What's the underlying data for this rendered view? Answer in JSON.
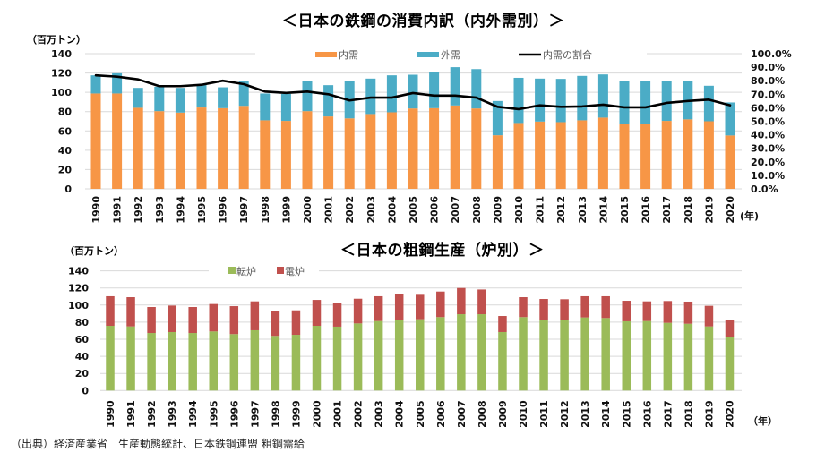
{
  "source_note": "（出典）経済産業省　生産動態統計、日本鉄鋼連盟 粗鋼需給",
  "colors": {
    "domestic": "#F79646",
    "export": "#4BACC6",
    "ratio_line": "#000000",
    "bof": "#9BBB59",
    "eaf": "#C0504D",
    "grid": "#D9D9D9"
  },
  "chart_data": [
    {
      "type": "bar",
      "stacked": true,
      "title": "＜日本の鉄鋼の消費内訳（内外需別）＞",
      "ylabel": "（百万トン）",
      "xlabel": "(年)",
      "ylim": [
        0,
        140
      ],
      "yticks": [
        "0",
        "20",
        "40",
        "60",
        "80",
        "100",
        "120",
        "140"
      ],
      "y2lim": [
        0,
        100
      ],
      "y2ticks": [
        "0.0%",
        "10.0%",
        "20.0%",
        "30.0%",
        "40.0%",
        "50.0%",
        "60.0%",
        "70.0%",
        "80.0%",
        "90.0%",
        "100.0%"
      ],
      "grid": true,
      "legend_position": "top-center",
      "categories": [
        "1990",
        "1991",
        "1992",
        "1993",
        "1994",
        "1995",
        "1996",
        "1997",
        "1998",
        "1999",
        "2000",
        "2001",
        "2002",
        "2003",
        "2004",
        "2005",
        "2006",
        "2007",
        "2008",
        "2009",
        "2010",
        "2011",
        "2012",
        "2013",
        "2014",
        "2015",
        "2016",
        "2017",
        "2018",
        "2019",
        "2020"
      ],
      "series": [
        {
          "name": "内需",
          "type": "bar",
          "axis": "left",
          "values": [
            98.8,
            98.8,
            84.0,
            80.5,
            79.0,
            84.3,
            83.6,
            86.0,
            71.0,
            70.4,
            80.5,
            75.0,
            73.0,
            77.5,
            79.3,
            83.3,
            83.6,
            86.4,
            83.3,
            55.5,
            68.2,
            69.7,
            69.1,
            71.0,
            73.8,
            67.6,
            67.3,
            70.4,
            72.0,
            70.0,
            55.3
          ]
        },
        {
          "name": "外需",
          "type": "bar",
          "axis": "left",
          "values": [
            18.8,
            20.9,
            20.6,
            25.3,
            25.6,
            23.7,
            21.6,
            25.7,
            27.8,
            28.0,
            31.5,
            32.4,
            38.4,
            36.7,
            38.3,
            34.9,
            37.7,
            39.6,
            40.7,
            35.5,
            46.8,
            44.5,
            44.8,
            46.0,
            44.7,
            44.4,
            44.4,
            41.6,
            39.4,
            36.8,
            34.2
          ]
        },
        {
          "name": "内需の割合",
          "type": "line",
          "axis": "right",
          "unit": "%",
          "values": [
            84.0,
            83.0,
            81.0,
            76.0,
            76.0,
            77.0,
            80.0,
            77.5,
            72.0,
            71.0,
            72.0,
            70.0,
            65.4,
            67.5,
            67.5,
            70.9,
            69.0,
            69.0,
            67.5,
            60.7,
            59.0,
            61.8,
            60.7,
            61.0,
            62.3,
            60.3,
            60.3,
            63.6,
            65.0,
            66.0,
            61.8
          ]
        }
      ]
    },
    {
      "type": "bar",
      "stacked": true,
      "title": "＜日本の粗鋼生産（炉別）＞",
      "ylabel": "（百万トン）",
      "xlabel": "（年）",
      "ylim": [
        0,
        140
      ],
      "yticks": [
        "0",
        "20",
        "40",
        "60",
        "80",
        "100",
        "120",
        "140"
      ],
      "grid": true,
      "legend_position": "top-left",
      "categories": [
        "1990",
        "1991",
        "1992",
        "1993",
        "1994",
        "1995",
        "1996",
        "1997",
        "1998",
        "1999",
        "2000",
        "2001",
        "2002",
        "2003",
        "2004",
        "2005",
        "2006",
        "2007",
        "2008",
        "2009",
        "2010",
        "2011",
        "2012",
        "2013",
        "2014",
        "2015",
        "2016",
        "2017",
        "2018",
        "2019",
        "2020"
      ],
      "series": [
        {
          "name": "転炉",
          "values": [
            75.7,
            75.0,
            67.3,
            68.4,
            67.3,
            69.1,
            66.0,
            70.5,
            63.9,
            65.2,
            75.7,
            74.7,
            78.5,
            81.3,
            83.0,
            83.4,
            85.9,
            89.3,
            89.3,
            68.4,
            85.9,
            82.8,
            82.0,
            85.5,
            84.8,
            81.0,
            81.3,
            79.2,
            78.1,
            75.0,
            62.1
          ]
        },
        {
          "name": "電炉",
          "values": [
            34.6,
            34.2,
            30.4,
            31.0,
            30.4,
            32.1,
            32.7,
            33.8,
            29.3,
            28.6,
            30.3,
            27.8,
            28.9,
            29.0,
            29.4,
            28.6,
            29.9,
            30.7,
            28.9,
            18.8,
            23.3,
            24.3,
            24.8,
            24.8,
            25.5,
            24.0,
            23.0,
            25.5,
            25.9,
            24.1,
            20.4
          ]
        }
      ]
    }
  ]
}
